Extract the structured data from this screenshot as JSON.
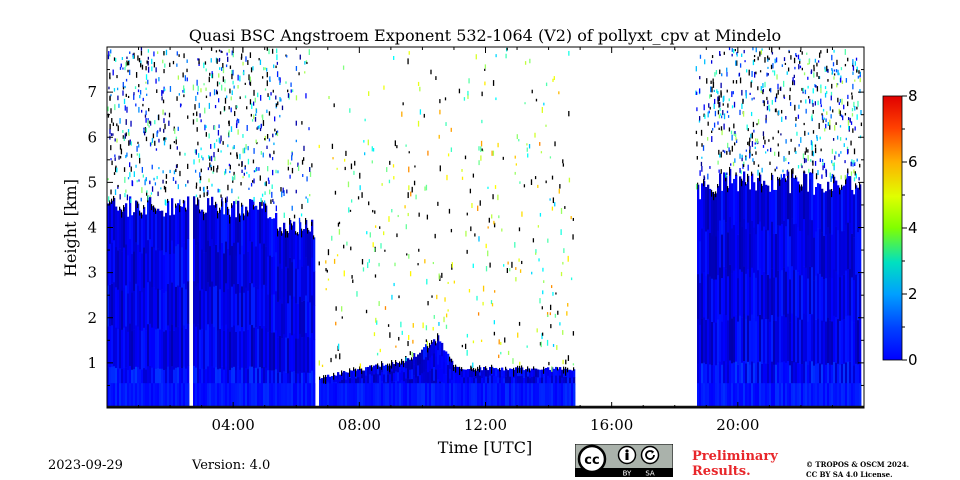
{
  "chart_data": {
    "type": "heatmap",
    "title": "Quasi BSC Angstroem Exponent 532-1064 (V2) of pollyxt_cpv at Mindelo",
    "xlabel": "Time [UTC]",
    "ylabel": "Height [km]",
    "x_unit": "hours UTC",
    "xlim": [
      0,
      24
    ],
    "ylim": [
      0,
      8
    ],
    "x_ticks": [
      {
        "value": 4,
        "label": "04:00"
      },
      {
        "value": 8,
        "label": "08:00"
      },
      {
        "value": 12,
        "label": "12:00"
      },
      {
        "value": 16,
        "label": "16:00"
      },
      {
        "value": 20,
        "label": "20:00"
      }
    ],
    "y_ticks": [
      {
        "value": 1,
        "label": "1"
      },
      {
        "value": 2,
        "label": "2"
      },
      {
        "value": 3,
        "label": "3"
      },
      {
        "value": 4,
        "label": "4"
      },
      {
        "value": 5,
        "label": "5"
      },
      {
        "value": 6,
        "label": "6"
      },
      {
        "value": 7,
        "label": "7"
      }
    ],
    "colorbar": {
      "colormap": "jet",
      "range": [
        0,
        8
      ],
      "ticks": [
        "0",
        "2",
        "4",
        "6",
        "8"
      ]
    },
    "data_gaps_hours": [
      [
        2.55,
        2.7
      ],
      [
        6.55,
        6.7
      ],
      [
        14.8,
        18.65
      ],
      [
        23.9,
        24.0
      ]
    ],
    "cloud_top_profile_km": [
      {
        "time": 0.0,
        "top": 4.6
      },
      {
        "time": 2.55,
        "top": 4.6
      },
      {
        "time": 2.7,
        "top": 4.7
      },
      {
        "time": 5.0,
        "top": 4.5
      },
      {
        "time": 5.5,
        "top": 4.2
      },
      {
        "time": 6.55,
        "top": 4.1
      },
      {
        "time": 6.7,
        "top": 0.7
      },
      {
        "time": 9.5,
        "top": 1.1
      },
      {
        "time": 10.5,
        "top": 1.6
      },
      {
        "time": 11.0,
        "top": 0.9
      },
      {
        "time": 14.8,
        "top": 0.9
      },
      {
        "time": 18.65,
        "top": 4.9
      },
      {
        "time": 19.5,
        "top": 5.2
      },
      {
        "time": 23.9,
        "top": 5.1
      }
    ],
    "dominant_value": 0.8
  },
  "footer": {
    "date": "2023-09-29",
    "version": "Version: 4.0",
    "preliminary_line1": "Preliminary",
    "preliminary_line2": "Results.",
    "copyright_line1": "© TROPOS & OSCM 2024.",
    "copyright_line2": "CC BY SA 4.0 License.",
    "license_badge": {
      "by": "BY",
      "sa": "SA"
    }
  }
}
